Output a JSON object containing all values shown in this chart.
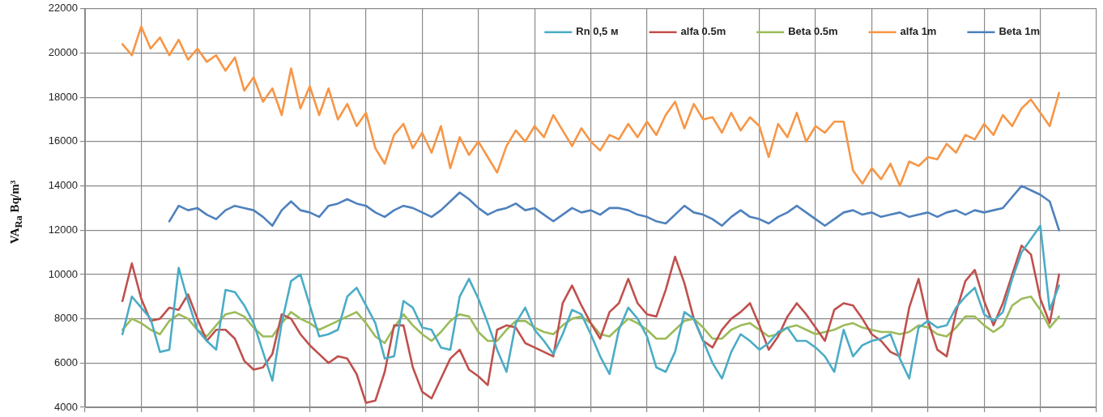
{
  "chart_data": {
    "type": "line",
    "ylabel": "VA$_{Ra}$ Bq/m³",
    "categories": [
      null,
      null,
      null,
      null,
      null,
      null,
      null,
      null,
      null,
      null,
      null,
      null,
      null,
      null,
      null,
      null,
      null,
      null,
      null,
      null,
      null,
      null,
      null,
      null,
      null,
      null,
      null,
      null,
      null,
      null,
      null,
      null,
      null,
      null,
      null,
      null,
      null,
      null,
      null,
      null,
      null,
      null,
      null,
      null,
      null,
      null,
      null,
      null,
      null,
      null,
      null,
      null,
      null,
      null,
      null,
      null,
      null,
      null,
      null,
      null,
      null,
      null,
      null,
      null,
      null,
      null,
      null,
      null,
      null,
      null,
      null,
      null,
      null,
      null,
      null,
      null,
      null,
      null,
      null,
      null,
      null,
      null,
      null,
      null,
      null,
      null,
      null,
      null,
      null,
      null,
      null,
      null,
      null,
      null,
      null,
      null,
      null,
      null,
      null,
      null,
      null,
      null,
      null,
      null,
      null,
      null,
      null,
      null,
      null
    ],
    "series": [
      {
        "name": "Rn 0,5 м",
        "color": "#4bacc6",
        "values": [
          null,
          null,
          null,
          null,
          7300,
          9000,
          8500,
          8000,
          6500,
          6600,
          10300,
          8800,
          7500,
          7000,
          6600,
          9300,
          9200,
          8600,
          7800,
          6500,
          5200,
          7800,
          9700,
          10000,
          8600,
          7200,
          7300,
          7500,
          9000,
          9400,
          8600,
          7800,
          6200,
          6300,
          8800,
          8500,
          7600,
          7500,
          6700,
          6600,
          9000,
          9800,
          8900,
          7800,
          6600,
          5600,
          7800,
          8500,
          7500,
          7000,
          6400,
          7300,
          8400,
          8200,
          7300,
          6300,
          5500,
          7500,
          8500,
          8000,
          7200,
          5800,
          5600,
          6500,
          8300,
          8000,
          7000,
          6000,
          5300,
          6500,
          7300,
          7000,
          6600,
          6900,
          7400,
          7600,
          7000,
          7000,
          6700,
          6300,
          5600,
          7500,
          6300,
          6800,
          7000,
          7100,
          7300,
          6200,
          5300,
          7600,
          7900,
          7600,
          7700,
          8500,
          9000,
          9400,
          8200,
          7900,
          8300,
          9800,
          11000,
          11600,
          12200,
          8400,
          9500,
          null,
          null,
          null,
          null
        ]
      },
      {
        "name": "alfa 0.5m",
        "color": "#c0504d",
        "values": [
          null,
          null,
          null,
          null,
          8800,
          10500,
          8900,
          7900,
          8000,
          8500,
          8400,
          9100,
          8000,
          7000,
          7500,
          7500,
          7100,
          6100,
          5700,
          5800,
          6400,
          8200,
          8000,
          7300,
          6800,
          6400,
          6000,
          6300,
          6200,
          5500,
          4200,
          4300,
          5600,
          7700,
          7700,
          5800,
          4700,
          4400,
          5300,
          6200,
          6600,
          5700,
          5400,
          5000,
          7500,
          7700,
          7600,
          6900,
          6700,
          6500,
          6300,
          8700,
          9500,
          8600,
          7800,
          7100,
          8300,
          8700,
          9800,
          8700,
          8200,
          8100,
          9300,
          10800,
          9600,
          8000,
          7000,
          6700,
          7500,
          8000,
          8300,
          8700,
          7700,
          6600,
          7200,
          8100,
          8700,
          8200,
          7600,
          7000,
          8400,
          8700,
          8600,
          8000,
          7300,
          7000,
          6500,
          6300,
          8500,
          9800,
          7900,
          6600,
          6300,
          8300,
          9700,
          10200,
          8800,
          7700,
          8700,
          10000,
          11300,
          10900,
          8900,
          7800,
          10000,
          null,
          null,
          null,
          null
        ]
      },
      {
        "name": "Beta 0.5m",
        "color": "#9bbb59",
        "values": [
          null,
          null,
          null,
          null,
          7500,
          8000,
          7800,
          7500,
          7300,
          7900,
          8200,
          8000,
          7500,
          7200,
          7700,
          8200,
          8300,
          8100,
          7600,
          7200,
          7200,
          7800,
          8300,
          8000,
          7800,
          7500,
          7700,
          7900,
          8100,
          8300,
          7800,
          7200,
          6900,
          7600,
          8200,
          7700,
          7300,
          7000,
          7400,
          7900,
          8200,
          8100,
          7400,
          7000,
          7000,
          7500,
          7900,
          7900,
          7600,
          7400,
          7300,
          7700,
          8000,
          8100,
          7800,
          7300,
          7200,
          7600,
          8000,
          7800,
          7500,
          7100,
          7100,
          7500,
          7900,
          8000,
          7600,
          7100,
          7100,
          7500,
          7700,
          7800,
          7500,
          7200,
          7300,
          7600,
          7700,
          7500,
          7300,
          7400,
          7500,
          7700,
          7800,
          7600,
          7500,
          7400,
          7400,
          7300,
          7400,
          7700,
          7600,
          7300,
          7200,
          7600,
          8100,
          8100,
          7700,
          7400,
          7700,
          8600,
          8900,
          9000,
          8400,
          7600,
          8100,
          null,
          null,
          null,
          null
        ]
      },
      {
        "name": "alfa 1m",
        "color": "#f79646",
        "values": [
          null,
          null,
          null,
          null,
          20400,
          19900,
          21200,
          20200,
          20700,
          19900,
          20600,
          19700,
          20200,
          19600,
          19900,
          19200,
          19800,
          18300,
          18900,
          17800,
          18400,
          17200,
          19300,
          17500,
          18500,
          17200,
          18400,
          17000,
          17700,
          16700,
          17300,
          15700,
          15000,
          16300,
          16800,
          15700,
          16400,
          15500,
          16700,
          14800,
          16200,
          15400,
          16000,
          15300,
          14600,
          15800,
          16500,
          16000,
          16700,
          16200,
          17200,
          16500,
          15800,
          16600,
          16000,
          15600,
          16300,
          16100,
          16800,
          16200,
          16900,
          16300,
          17200,
          17800,
          16600,
          17700,
          17000,
          17100,
          16400,
          17300,
          16500,
          17100,
          16700,
          15300,
          16800,
          16200,
          17300,
          16000,
          16700,
          16400,
          16900,
          16900,
          14700,
          14100,
          14800,
          14300,
          15000,
          14000,
          15100,
          14900,
          15300,
          15200,
          15900,
          15500,
          16300,
          16100,
          16800,
          16300,
          17200,
          16700,
          17500,
          17900,
          17300,
          16700,
          18200,
          null,
          null,
          null,
          null
        ]
      },
      {
        "name": "Beta 1m",
        "color": "#4f81bd",
        "values": [
          null,
          null,
          null,
          null,
          null,
          null,
          null,
          null,
          null,
          12400,
          13100,
          12900,
          13000,
          12700,
          12500,
          12900,
          13100,
          13000,
          12900,
          12600,
          12200,
          12900,
          13300,
          12900,
          12800,
          12600,
          13100,
          13200,
          13400,
          13200,
          13100,
          12800,
          12600,
          12900,
          13100,
          13000,
          12800,
          12600,
          12900,
          13300,
          13700,
          13400,
          13000,
          12700,
          12900,
          13000,
          13200,
          12900,
          13000,
          12700,
          12400,
          12700,
          13000,
          12800,
          12900,
          12700,
          13000,
          13000,
          12900,
          12700,
          12600,
          12400,
          12300,
          12700,
          13100,
          12800,
          12700,
          12500,
          12200,
          12600,
          12900,
          12600,
          12500,
          12300,
          12600,
          12800,
          13100,
          12800,
          12500,
          12200,
          12500,
          12800,
          12900,
          12700,
          12800,
          12600,
          12700,
          12800,
          12600,
          12700,
          12800,
          12600,
          12800,
          12900,
          12700,
          12900,
          12800,
          12900,
          13000,
          13500,
          14000,
          13800,
          13600,
          13300,
          12000,
          null,
          null,
          null,
          null
        ]
      }
    ],
    "ylim": [
      4000,
      22000
    ],
    "yticks": [
      4000,
      6000,
      8000,
      10000,
      12000,
      14000,
      16000,
      18000,
      20000,
      22000
    ],
    "grid": true,
    "legend": "top right",
    "marker": "none",
    "line_style": "solid",
    "tick_labels": "y"
  }
}
